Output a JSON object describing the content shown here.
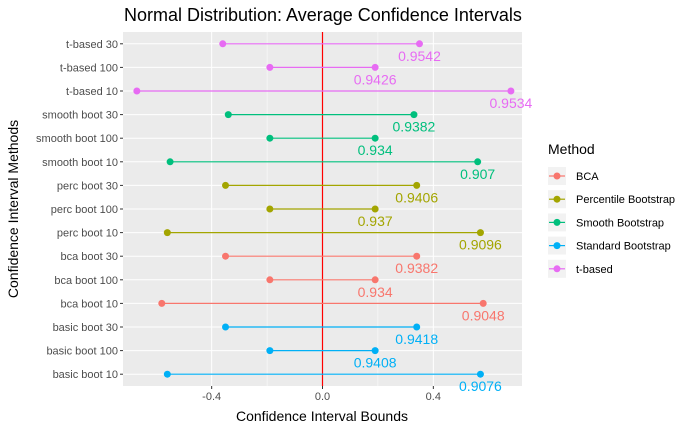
{
  "chart_data": {
    "type": "dumbbell",
    "title": "Normal Distribution: Average Confidence Intervals",
    "xlabel": "Confidence Interval Bounds",
    "ylabel": "Confidence Interval Methods",
    "xlim": [
      -0.72,
      0.72
    ],
    "x_ticks": [
      -0.4,
      0.0,
      0.4
    ],
    "x_tick_labels": [
      "-0.4",
      "0.0",
      "0.4"
    ],
    "reference_line": {
      "x": 0,
      "color": "#ff0000"
    },
    "categories": [
      "basic boot 10",
      "basic boot 100",
      "basic boot 30",
      "bca boot 10",
      "bca boot 100",
      "bca boot 30",
      "perc boot 10",
      "perc boot 100",
      "perc boot 30",
      "smooth boot 10",
      "smooth boot 100",
      "smooth boot 30",
      "t-based 10",
      "t-based 100",
      "t-based 30"
    ],
    "legend": {
      "title": "Method",
      "position": "right",
      "entries": [
        {
          "name": "BCA",
          "color": "#F8766D"
        },
        {
          "name": "Percentile Bootstrap",
          "color": "#A3A500"
        },
        {
          "name": "Smooth Bootstrap",
          "color": "#00BF7D"
        },
        {
          "name": "Standard Bootstrap",
          "color": "#00B0F6"
        },
        {
          "name": "t-based",
          "color": "#E76BF3"
        }
      ]
    },
    "grid": true,
    "rows": [
      {
        "category": "basic boot 10",
        "method": "Standard Bootstrap",
        "lower": -0.56,
        "upper": 0.57,
        "coverage": "0.9076"
      },
      {
        "category": "basic boot 100",
        "method": "Standard Bootstrap",
        "lower": -0.19,
        "upper": 0.19,
        "coverage": "0.9408"
      },
      {
        "category": "basic boot 30",
        "method": "Standard Bootstrap",
        "lower": -0.35,
        "upper": 0.34,
        "coverage": "0.9418"
      },
      {
        "category": "bca boot 10",
        "method": "BCA",
        "lower": -0.58,
        "upper": 0.58,
        "coverage": "0.9048"
      },
      {
        "category": "bca boot 100",
        "method": "BCA",
        "lower": -0.19,
        "upper": 0.19,
        "coverage": "0.934"
      },
      {
        "category": "bca boot 30",
        "method": "BCA",
        "lower": -0.35,
        "upper": 0.34,
        "coverage": "0.9382"
      },
      {
        "category": "perc boot 10",
        "method": "Percentile Bootstrap",
        "lower": -0.56,
        "upper": 0.57,
        "coverage": "0.9096"
      },
      {
        "category": "perc boot 100",
        "method": "Percentile Bootstrap",
        "lower": -0.19,
        "upper": 0.19,
        "coverage": "0.937"
      },
      {
        "category": "perc boot 30",
        "method": "Percentile Bootstrap",
        "lower": -0.35,
        "upper": 0.34,
        "coverage": "0.9406"
      },
      {
        "category": "smooth boot 10",
        "method": "Smooth Bootstrap",
        "lower": -0.55,
        "upper": 0.56,
        "coverage": "0.907"
      },
      {
        "category": "smooth boot 100",
        "method": "Smooth Bootstrap",
        "lower": -0.19,
        "upper": 0.19,
        "coverage": "0.934"
      },
      {
        "category": "smooth boot 30",
        "method": "Smooth Bootstrap",
        "lower": -0.34,
        "upper": 0.33,
        "coverage": "0.9382"
      },
      {
        "category": "t-based 10",
        "method": "t-based",
        "lower": -0.67,
        "upper": 0.68,
        "coverage": "0.9534"
      },
      {
        "category": "t-based 100",
        "method": "t-based",
        "lower": -0.19,
        "upper": 0.19,
        "coverage": "0.9426"
      },
      {
        "category": "t-based 30",
        "method": "t-based",
        "lower": -0.36,
        "upper": 0.35,
        "coverage": "0.9542"
      }
    ]
  }
}
